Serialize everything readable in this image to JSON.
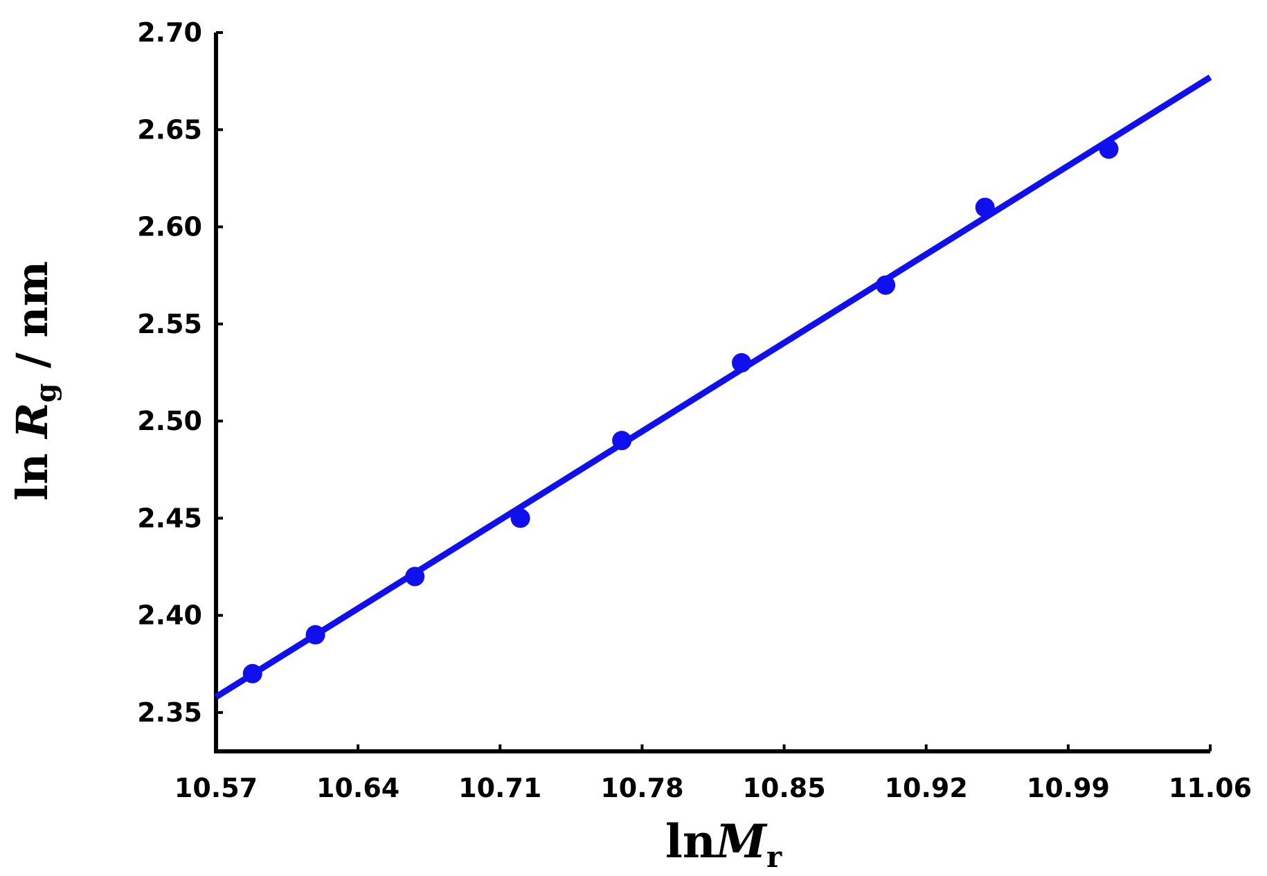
{
  "chart_data": {
    "type": "scatter",
    "xlabel": {
      "base": "ln",
      "var": "M",
      "sub": "r"
    },
    "ylabel": {
      "base": "ln ",
      "var": "R",
      "sub": "g",
      "unit": " / nm"
    },
    "xlim": [
      10.57,
      11.06
    ],
    "ylim": [
      2.33,
      2.7
    ],
    "xticks": [
      "10.57",
      "10.64",
      "10.71",
      "10.78",
      "10.85",
      "10.92",
      "10.99",
      "11.06"
    ],
    "yticks": [
      "2.35",
      "2.40",
      "2.45",
      "2.50",
      "2.55",
      "2.60",
      "2.65",
      "2.70"
    ],
    "series": [
      {
        "x": [
          10.588,
          10.619,
          10.668,
          10.72,
          10.77,
          10.829,
          10.9,
          10.949,
          11.01
        ],
        "y": [
          2.37,
          2.39,
          2.42,
          2.45,
          2.49,
          2.53,
          2.57,
          2.61,
          2.64
        ]
      }
    ],
    "fit_line": {
      "x": [
        10.57,
        11.06
      ],
      "y": [
        2.358,
        2.677
      ]
    },
    "color": "#1010ee",
    "grid": false
  }
}
